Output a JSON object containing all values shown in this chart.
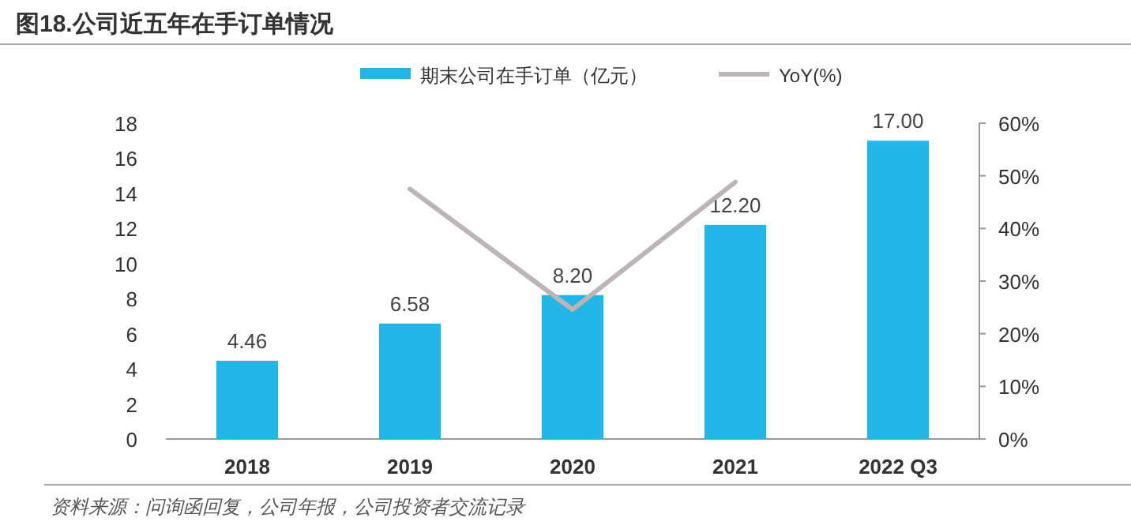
{
  "chart_data": {
    "type": "bar",
    "title": "图18.公司近五年在手订单情况",
    "categories": [
      "2018",
      "2019",
      "2020",
      "2021",
      "2022 Q3"
    ],
    "series": [
      {
        "name": "期末公司在手订单（亿元）",
        "color": "#22b5e6",
        "values": [
          4.46,
          6.58,
          8.2,
          12.2,
          17.0
        ]
      },
      {
        "name": "YoY(%)",
        "type": "line",
        "axis": "y2",
        "color": "#bdb5b5",
        "values": [
          null,
          47.5,
          24.6,
          48.8,
          null
        ]
      }
    ],
    "ylim": [
      0,
      18
    ],
    "yticks": [
      0,
      2,
      4,
      6,
      8,
      10,
      12,
      14,
      16,
      18
    ],
    "y2lim": [
      0,
      60
    ],
    "y2ticks": [
      {
        "value": 0,
        "label": "0%"
      },
      {
        "value": 10,
        "label": "10%"
      },
      {
        "value": 20,
        "label": "20%"
      },
      {
        "value": 30,
        "label": "30%"
      },
      {
        "value": 40,
        "label": "40%"
      },
      {
        "value": 50,
        "label": "50%"
      },
      {
        "value": 60,
        "label": "60%"
      }
    ],
    "value_labels": [
      "4.46",
      "6.58",
      "8.20",
      "12.20",
      "17.00"
    ],
    "legend": "top",
    "grid": false,
    "annotations": [
      "资料来源：问询函回复，公司年报，公司投资者交流记录"
    ]
  }
}
